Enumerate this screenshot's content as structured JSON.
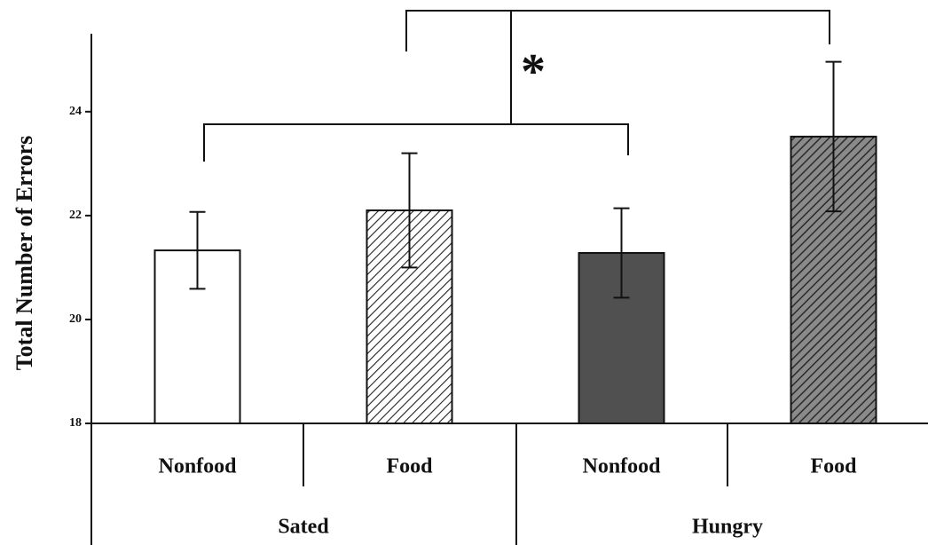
{
  "chart_data": {
    "type": "bar",
    "y_label": "Total Number of Errors",
    "categories": [
      "Nonfood",
      "Food",
      "Nonfood",
      "Food"
    ],
    "group_labels": [
      "Sated",
      "Hungry"
    ],
    "values": [
      21.33,
      22.1,
      21.28,
      23.52
    ],
    "errors": [
      0.74,
      1.1,
      0.86,
      1.44
    ],
    "colors": [
      "#ffffff",
      "#ffffff",
      "#505050",
      "#6a6a6a"
    ],
    "hatch": [
      false,
      true,
      false,
      true
    ],
    "annotation": "*",
    "ylim": [
      18,
      25.5
    ],
    "yticks": [
      18,
      20,
      22,
      24
    ]
  }
}
